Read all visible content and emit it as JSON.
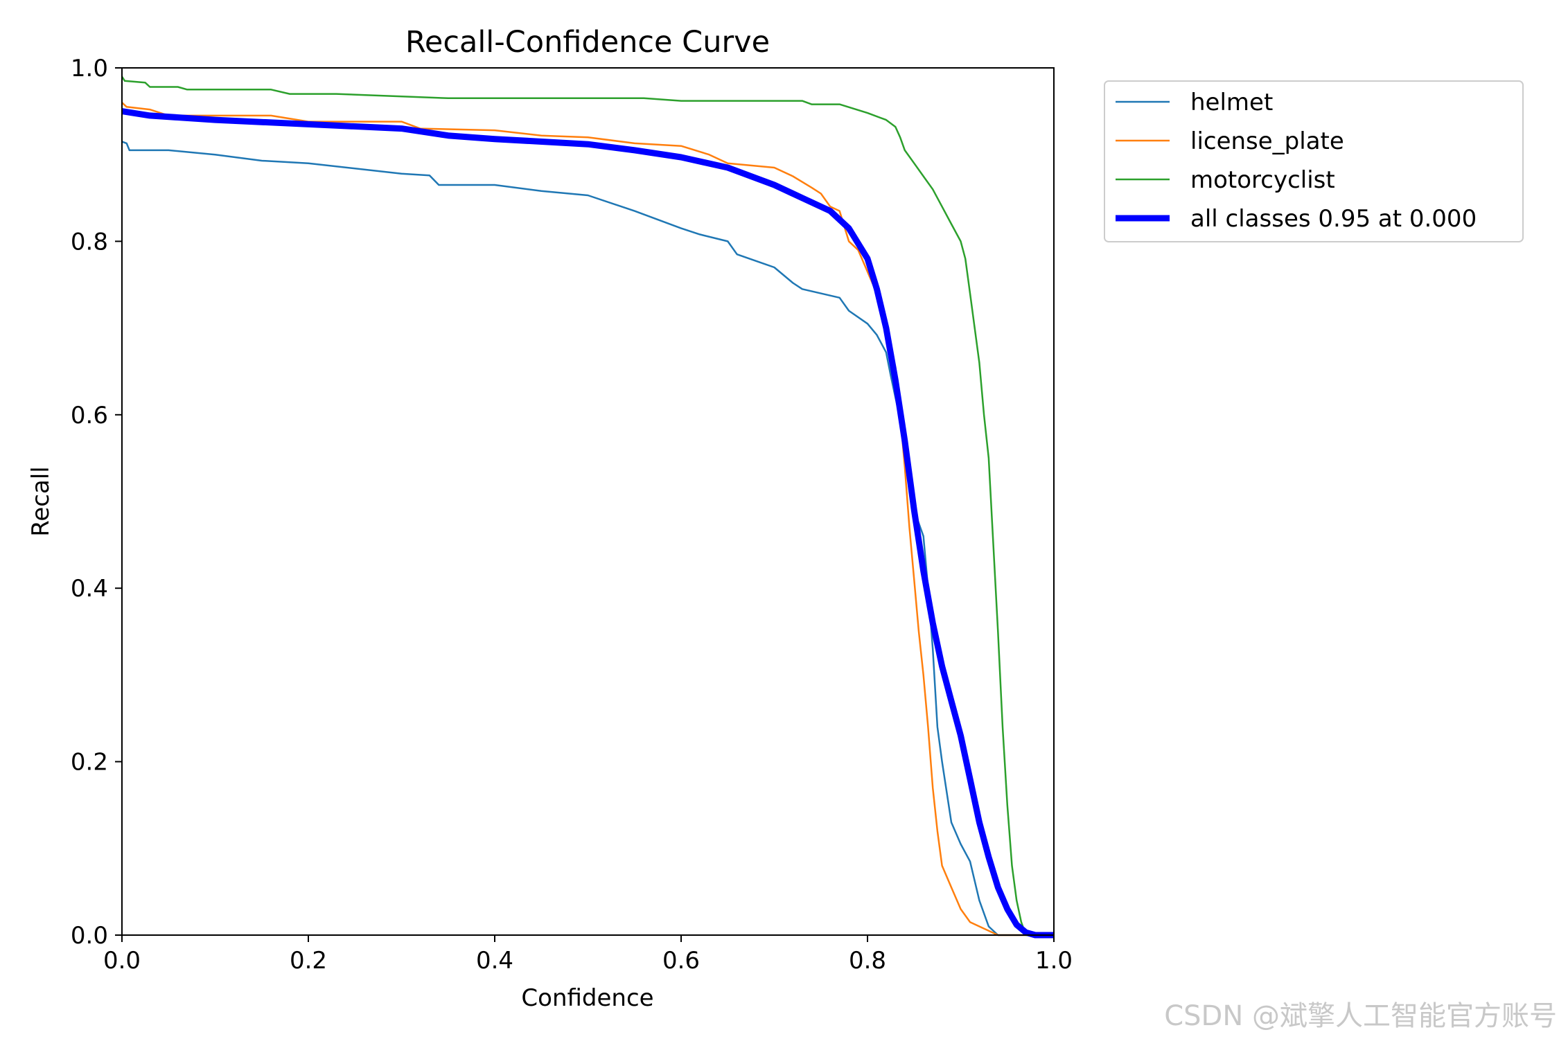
{
  "chart_data": {
    "type": "line",
    "title": "Recall-Confidence Curve",
    "xlabel": "Confidence",
    "ylabel": "Recall",
    "xlim": [
      0,
      1
    ],
    "ylim": [
      0,
      1
    ],
    "x_ticks": [
      "0.0",
      "0.2",
      "0.4",
      "0.6",
      "0.8",
      "1.0"
    ],
    "y_ticks": [
      "0.0",
      "0.2",
      "0.4",
      "0.6",
      "0.8",
      "1.0"
    ],
    "grid": false,
    "legend_position": "outside-top-right",
    "series": [
      {
        "name": "helmet",
        "color": "#1f77b4",
        "emphasis": false,
        "points": [
          [
            0,
            0.915
          ],
          [
            0.005,
            0.913
          ],
          [
            0.008,
            0.905
          ],
          [
            0.05,
            0.905
          ],
          [
            0.1,
            0.9
          ],
          [
            0.15,
            0.893
          ],
          [
            0.2,
            0.89
          ],
          [
            0.3,
            0.878
          ],
          [
            0.33,
            0.876
          ],
          [
            0.34,
            0.865
          ],
          [
            0.4,
            0.865
          ],
          [
            0.45,
            0.858
          ],
          [
            0.5,
            0.853
          ],
          [
            0.55,
            0.835
          ],
          [
            0.6,
            0.815
          ],
          [
            0.62,
            0.808
          ],
          [
            0.65,
            0.8
          ],
          [
            0.66,
            0.785
          ],
          [
            0.7,
            0.77
          ],
          [
            0.72,
            0.752
          ],
          [
            0.73,
            0.745
          ],
          [
            0.77,
            0.735
          ],
          [
            0.78,
            0.72
          ],
          [
            0.8,
            0.705
          ],
          [
            0.81,
            0.692
          ],
          [
            0.82,
            0.672
          ],
          [
            0.825,
            0.645
          ],
          [
            0.83,
            0.62
          ],
          [
            0.835,
            0.595
          ],
          [
            0.84,
            0.552
          ],
          [
            0.845,
            0.525
          ],
          [
            0.85,
            0.49
          ],
          [
            0.86,
            0.46
          ],
          [
            0.865,
            0.4
          ],
          [
            0.87,
            0.33
          ],
          [
            0.875,
            0.24
          ],
          [
            0.88,
            0.2
          ],
          [
            0.885,
            0.165
          ],
          [
            0.89,
            0.13
          ],
          [
            0.9,
            0.105
          ],
          [
            0.91,
            0.085
          ],
          [
            0.92,
            0.04
          ],
          [
            0.93,
            0.01
          ],
          [
            0.94,
            0.0
          ],
          [
            1.0,
            0.0
          ]
        ]
      },
      {
        "name": "license_plate",
        "color": "#ff7f0e",
        "emphasis": false,
        "points": [
          [
            0,
            0.96
          ],
          [
            0.005,
            0.955
          ],
          [
            0.03,
            0.952
          ],
          [
            0.05,
            0.945
          ],
          [
            0.16,
            0.945
          ],
          [
            0.2,
            0.938
          ],
          [
            0.3,
            0.938
          ],
          [
            0.32,
            0.93
          ],
          [
            0.4,
            0.928
          ],
          [
            0.45,
            0.922
          ],
          [
            0.5,
            0.92
          ],
          [
            0.55,
            0.913
          ],
          [
            0.6,
            0.91
          ],
          [
            0.63,
            0.9
          ],
          [
            0.65,
            0.89
          ],
          [
            0.7,
            0.885
          ],
          [
            0.72,
            0.875
          ],
          [
            0.74,
            0.862
          ],
          [
            0.75,
            0.855
          ],
          [
            0.76,
            0.84
          ],
          [
            0.77,
            0.835
          ],
          [
            0.78,
            0.8
          ],
          [
            0.79,
            0.79
          ],
          [
            0.8,
            0.765
          ],
          [
            0.81,
            0.74
          ],
          [
            0.82,
            0.7
          ],
          [
            0.83,
            0.655
          ],
          [
            0.835,
            0.6
          ],
          [
            0.84,
            0.54
          ],
          [
            0.845,
            0.47
          ],
          [
            0.85,
            0.41
          ],
          [
            0.855,
            0.35
          ],
          [
            0.86,
            0.3
          ],
          [
            0.865,
            0.24
          ],
          [
            0.87,
            0.17
          ],
          [
            0.875,
            0.12
          ],
          [
            0.88,
            0.08
          ],
          [
            0.89,
            0.055
          ],
          [
            0.9,
            0.03
          ],
          [
            0.91,
            0.015
          ],
          [
            0.93,
            0.005
          ],
          [
            0.94,
            0.0
          ],
          [
            1.0,
            0.0
          ]
        ]
      },
      {
        "name": "motorcyclist",
        "color": "#2ca02c",
        "emphasis": false,
        "points": [
          [
            0,
            0.99
          ],
          [
            0.003,
            0.985
          ],
          [
            0.025,
            0.983
          ],
          [
            0.03,
            0.978
          ],
          [
            0.06,
            0.978
          ],
          [
            0.07,
            0.975
          ],
          [
            0.16,
            0.975
          ],
          [
            0.18,
            0.97
          ],
          [
            0.23,
            0.97
          ],
          [
            0.35,
            0.965
          ],
          [
            0.56,
            0.965
          ],
          [
            0.6,
            0.962
          ],
          [
            0.73,
            0.962
          ],
          [
            0.74,
            0.958
          ],
          [
            0.77,
            0.958
          ],
          [
            0.8,
            0.948
          ],
          [
            0.82,
            0.94
          ],
          [
            0.83,
            0.932
          ],
          [
            0.835,
            0.92
          ],
          [
            0.84,
            0.905
          ],
          [
            0.85,
            0.89
          ],
          [
            0.86,
            0.875
          ],
          [
            0.87,
            0.86
          ],
          [
            0.88,
            0.84
          ],
          [
            0.89,
            0.82
          ],
          [
            0.9,
            0.8
          ],
          [
            0.905,
            0.78
          ],
          [
            0.91,
            0.74
          ],
          [
            0.915,
            0.7
          ],
          [
            0.92,
            0.66
          ],
          [
            0.925,
            0.6
          ],
          [
            0.93,
            0.55
          ],
          [
            0.935,
            0.45
          ],
          [
            0.94,
            0.35
          ],
          [
            0.945,
            0.24
          ],
          [
            0.95,
            0.15
          ],
          [
            0.955,
            0.08
          ],
          [
            0.96,
            0.04
          ],
          [
            0.965,
            0.015
          ],
          [
            0.97,
            0.0
          ],
          [
            1.0,
            0.0
          ]
        ]
      },
      {
        "name": "all classes 0.95 at 0.000",
        "color": "#0000ff",
        "emphasis": true,
        "points": [
          [
            0,
            0.95
          ],
          [
            0.03,
            0.945
          ],
          [
            0.1,
            0.94
          ],
          [
            0.2,
            0.935
          ],
          [
            0.3,
            0.93
          ],
          [
            0.35,
            0.922
          ],
          [
            0.4,
            0.918
          ],
          [
            0.5,
            0.912
          ],
          [
            0.55,
            0.905
          ],
          [
            0.6,
            0.897
          ],
          [
            0.65,
            0.885
          ],
          [
            0.7,
            0.865
          ],
          [
            0.73,
            0.85
          ],
          [
            0.76,
            0.835
          ],
          [
            0.78,
            0.815
          ],
          [
            0.8,
            0.78
          ],
          [
            0.81,
            0.745
          ],
          [
            0.82,
            0.7
          ],
          [
            0.83,
            0.64
          ],
          [
            0.84,
            0.57
          ],
          [
            0.85,
            0.49
          ],
          [
            0.86,
            0.42
          ],
          [
            0.87,
            0.36
          ],
          [
            0.88,
            0.31
          ],
          [
            0.89,
            0.27
          ],
          [
            0.9,
            0.23
          ],
          [
            0.91,
            0.18
          ],
          [
            0.92,
            0.13
          ],
          [
            0.93,
            0.09
          ],
          [
            0.94,
            0.055
          ],
          [
            0.95,
            0.03
          ],
          [
            0.96,
            0.012
          ],
          [
            0.97,
            0.003
          ],
          [
            0.98,
            0.0
          ],
          [
            1.0,
            0.0
          ]
        ]
      }
    ]
  },
  "watermark": "CSDN @斌擎人工智能官方账号"
}
